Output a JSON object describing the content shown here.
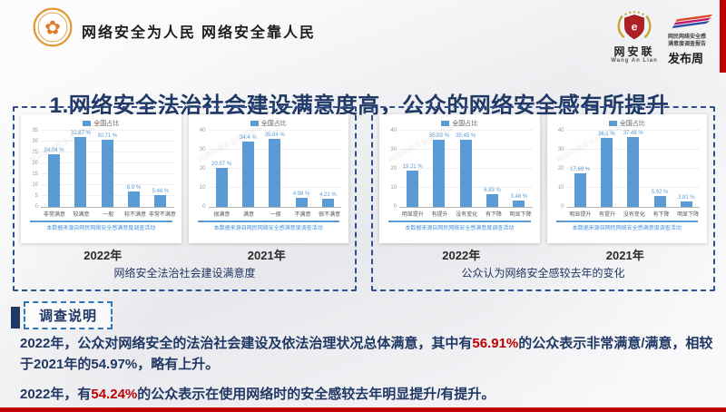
{
  "header": {
    "slogan": "网络安全为人民 网络安全靠人民",
    "org_name": "网安联",
    "org_name_en": "Wang An Lian",
    "report_line1": "网民网络安全感",
    "report_line2": "满意度调查报告",
    "publish_week": "发布周"
  },
  "title": "1.网络安全法治社会建设满意度高，公众的网络安全感有所提升",
  "panels": [
    {
      "caption": "网络安全法治社会建设满意度",
      "years": [
        "2022年",
        "2021年"
      ]
    },
    {
      "caption": "公众认为网络安全感较去年的变化",
      "years": [
        "2022年",
        "2021年"
      ]
    }
  ],
  "watermark": "网民网络安全感满意度调查",
  "chart_data": [
    {
      "type": "bar",
      "title": "2022年 网络安全法治社会建设满意度",
      "legend": "全国占比",
      "categories": [
        "非常满意",
        "较满意",
        "一般",
        "较不满意",
        "非常不满意"
      ],
      "values": [
        24.04,
        32.87,
        30.71,
        6.9,
        5.48
      ],
      "labels": [
        "24.04 %",
        "32.87 %",
        "30.71 %",
        "6.9 %",
        "5.48 %"
      ],
      "ylim": [
        0,
        35
      ],
      "yticks": [
        0,
        5,
        10,
        15,
        20,
        25,
        30,
        35
      ],
      "source": "本数据来源自网民网络安全感满意度调查活动"
    },
    {
      "type": "bar",
      "title": "2021年 网络安全法治社会建设满意度",
      "legend": "全国占比",
      "categories": [
        "很满意",
        "满意",
        "一般",
        "不满意",
        "很不满意"
      ],
      "values": [
        20.57,
        34.4,
        35.84,
        4.98,
        4.21
      ],
      "labels": [
        "20.57 %",
        "34.4 %",
        "35.84 %",
        "4.98 %",
        "4.21 %"
      ],
      "ylim": [
        0,
        40
      ],
      "yticks": [
        0,
        10,
        20,
        30,
        40
      ],
      "source": "本数据来源自网民网络安全感满意度调查活动"
    },
    {
      "type": "bar",
      "title": "2022年 公众认为网络安全感较去年的变化",
      "legend": "全国占比",
      "categories": [
        "明显提升",
        "有提升",
        "没有变化",
        "有下降",
        "明显下降"
      ],
      "values": [
        19.21,
        35.03,
        35.45,
        6.83,
        3.48
      ],
      "labels": [
        "19.21 %",
        "35.03 %",
        "35.45 %",
        "6.83 %",
        "3.48 %"
      ],
      "ylim": [
        0,
        40
      ],
      "yticks": [
        0,
        10,
        20,
        30,
        40
      ],
      "source": "本数据来源自网民网络安全感满意度调查活动"
    },
    {
      "type": "bar",
      "title": "2021年 公众认为网络安全感较去年的变化",
      "legend": "全国占比",
      "categories": [
        "明显提升",
        "有提升",
        "没有变化",
        "有下降",
        "明显下降"
      ],
      "values": [
        17.69,
        36.1,
        37.48,
        5.92,
        2.81
      ],
      "labels": [
        "17.69 %",
        "36.1 %",
        "37.48 %",
        "5.92 %",
        "2.81 %"
      ],
      "ylim": [
        0,
        40
      ],
      "yticks": [
        0,
        10,
        20,
        30,
        40
      ],
      "source": "本数据来源自网民网络安全感满意度调查活动"
    }
  ],
  "survey_note": {
    "label": "调查说明",
    "paragraphs": [
      [
        {
          "t": "2022年，公众对网络安全的法治社会建设及依法治理状况总体满意，其中有",
          "hl": false
        },
        {
          "t": "56.91%",
          "hl": true
        },
        {
          "t": "的公众表示非常满意/满意，相较于2021年的54.97%，略有上升。",
          "hl": false
        }
      ],
      [
        {
          "t": "2022年，有",
          "hl": false
        },
        {
          "t": "54.24%",
          "hl": true
        },
        {
          "t": "的公众表示在使用网络时的安全感较去年明显提升/有提升。",
          "hl": false
        }
      ]
    ]
  },
  "colors": {
    "bar_blue": "#5b9bd5",
    "navy_text": "#203864",
    "highlight_red": "#c00000",
    "panel_border_blue": "#2e4e8f",
    "note_border_blue": "#2e75b6"
  }
}
